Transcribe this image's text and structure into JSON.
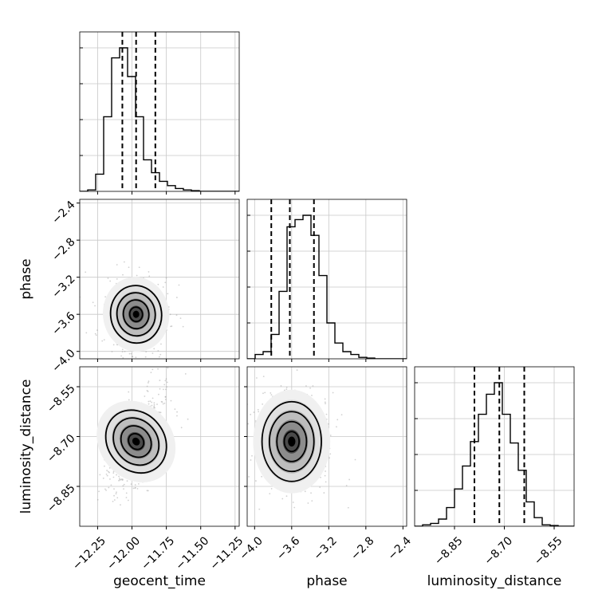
{
  "chart_data": {
    "type": "corner",
    "parameters": [
      "geocent_time",
      "phase",
      "luminosity_distance"
    ],
    "ranges": {
      "geocent_time": [
        -12.38,
        -11.22
      ],
      "phase": [
        -4.08,
        -2.36
      ],
      "luminosity_distance": [
        -8.97,
        -8.49
      ]
    },
    "ticks": {
      "geocent_time": {
        "values": [
          -12.25,
          -12.0,
          -11.75,
          -11.5,
          -11.25
        ],
        "labels": [
          "−12.25",
          "−12.00",
          "−11.75",
          "−11.50",
          "−11.25"
        ]
      },
      "phase": {
        "values": [
          -4.0,
          -3.6,
          -3.2,
          -2.8,
          -2.4
        ],
        "labels": [
          "−4.0",
          "−3.6",
          "−3.2",
          "−2.8",
          "−2.4"
        ]
      },
      "luminosity_distance": {
        "values": [
          -8.85,
          -8.7,
          -8.55
        ],
        "labels": [
          "−8.85",
          "−8.70",
          "−8.55"
        ]
      }
    },
    "quantiles": {
      "geocent_time": [
        -12.07,
        -11.97,
        -11.83
      ],
      "phase": [
        -3.82,
        -3.62,
        -3.36
      ],
      "luminosity_distance": [
        -8.79,
        -8.715,
        -8.64
      ]
    },
    "histograms": {
      "geocent_time": [
        0.0,
        0.01,
        0.12,
        0.52,
        0.93,
        1.0,
        0.8,
        0.52,
        0.22,
        0.13,
        0.07,
        0.04,
        0.02,
        0.01,
        0.005,
        0.0,
        0.0,
        0.0,
        0.0,
        0.0
      ],
      "phase": [
        0.0,
        0.03,
        0.05,
        0.17,
        0.47,
        0.92,
        0.97,
        1.0,
        0.86,
        0.58,
        0.25,
        0.11,
        0.05,
        0.03,
        0.01,
        0.005,
        0.0,
        0.0,
        0.0,
        0.0
      ],
      "luminosity_distance": [
        0.0,
        0.01,
        0.02,
        0.05,
        0.13,
        0.26,
        0.42,
        0.59,
        0.78,
        0.92,
        1.0,
        0.78,
        0.58,
        0.39,
        0.17,
        0.06,
        0.01,
        0.005,
        0.0,
        0.0
      ]
    },
    "correlations": {
      "phase|geocent_time": 0.1,
      "luminosity_distance|geocent_time": 0.5,
      "luminosity_distance|phase": 0.0
    },
    "means": {
      "geocent_time": -11.97,
      "phase": -3.6,
      "luminosity_distance": -8.715
    },
    "sigmas": {
      "geocent_time": 0.09,
      "phase": 0.16,
      "luminosity_distance": 0.06
    },
    "xlabels": [
      "geocent_time",
      "phase",
      "luminosity_distance"
    ],
    "ylabels": [
      "",
      "phase",
      "luminosity_distance"
    ],
    "grid": true,
    "legend": "none"
  }
}
